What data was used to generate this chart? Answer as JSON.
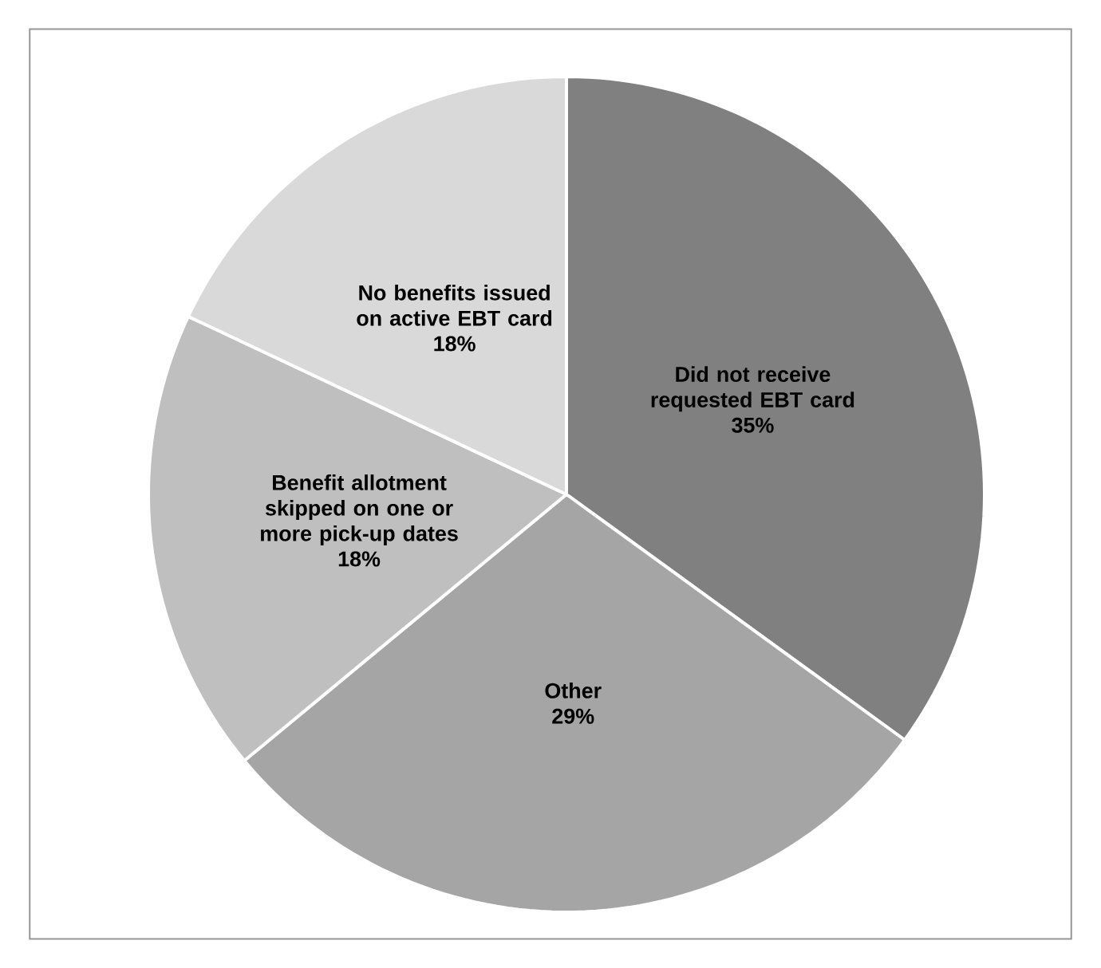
{
  "chart_data": {
    "type": "pie",
    "categories": [
      "Did not receive requested EBT card",
      "Other",
      "Benefit allotment skipped on one or more pick-up dates",
      "No benefits issued on active EBT card"
    ],
    "values": [
      35,
      29,
      18,
      18
    ],
    "value_labels": [
      "35%",
      "29%",
      "18%",
      "18%"
    ],
    "colors": [
      "#808080",
      "#a5a5a5",
      "#bfbfbf",
      "#d9d9d9"
    ]
  }
}
